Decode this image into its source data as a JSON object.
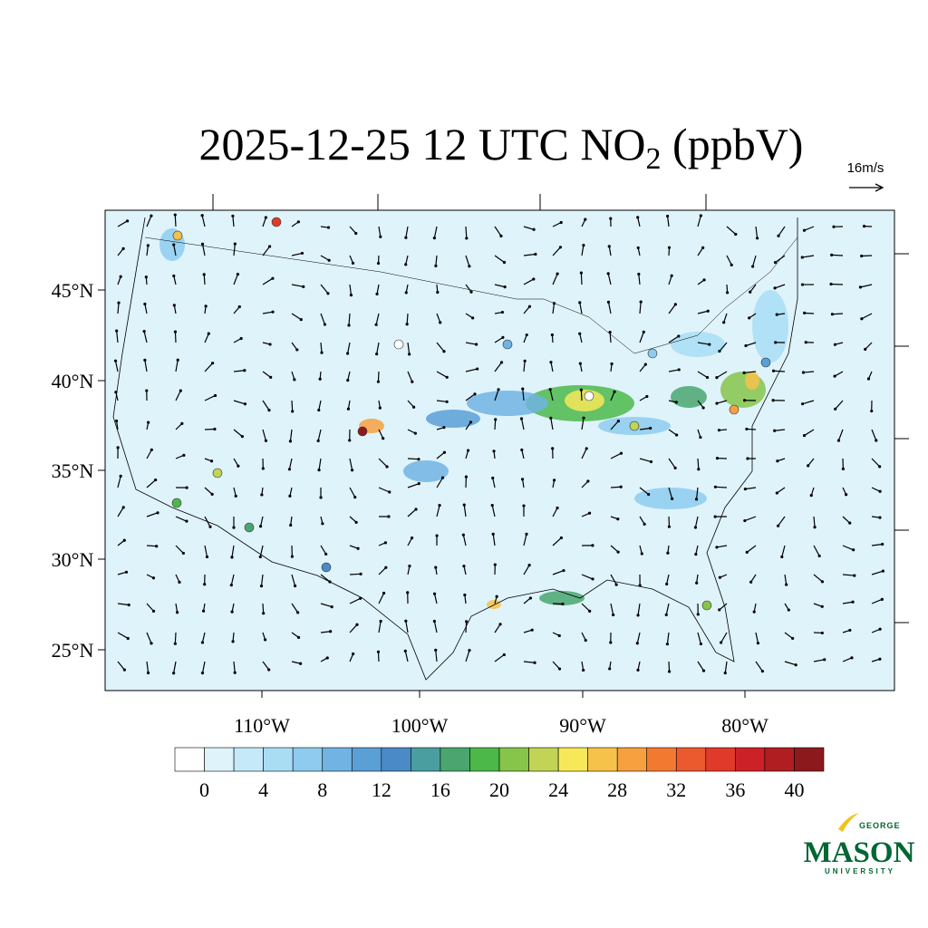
{
  "title": {
    "main": "2025-12-25 12 UTC NO",
    "subscript": "2",
    "tail": " (ppbV)"
  },
  "vector_reference": "16m/s",
  "lat_labels": [
    "45°N",
    "40°N",
    "35°N",
    "30°N",
    "25°N"
  ],
  "lon_labels": [
    "110°W",
    "100°W",
    "90°W",
    "80°W"
  ],
  "colorbar": {
    "colors": [
      "#ffffff",
      "#dff3fb",
      "#c5e9f8",
      "#a9ddf4",
      "#8ecbee",
      "#71b3e3",
      "#5a9fd6",
      "#4a8ac7",
      "#4a9ea0",
      "#4aa66e",
      "#4cb84a",
      "#86c44a",
      "#c2d456",
      "#f7e85a",
      "#f7c24a",
      "#f7a03f",
      "#f27a30",
      "#ea5a2e",
      "#e03a2a",
      "#cc2227",
      "#b01e22",
      "#8c1a1c"
    ],
    "ticks": [
      0,
      4,
      8,
      12,
      16,
      20,
      24,
      28,
      32,
      36,
      40
    ]
  },
  "logo": {
    "top": "GEORGE",
    "name": "MASON",
    "bottom": "UNIVERSITY"
  }
}
